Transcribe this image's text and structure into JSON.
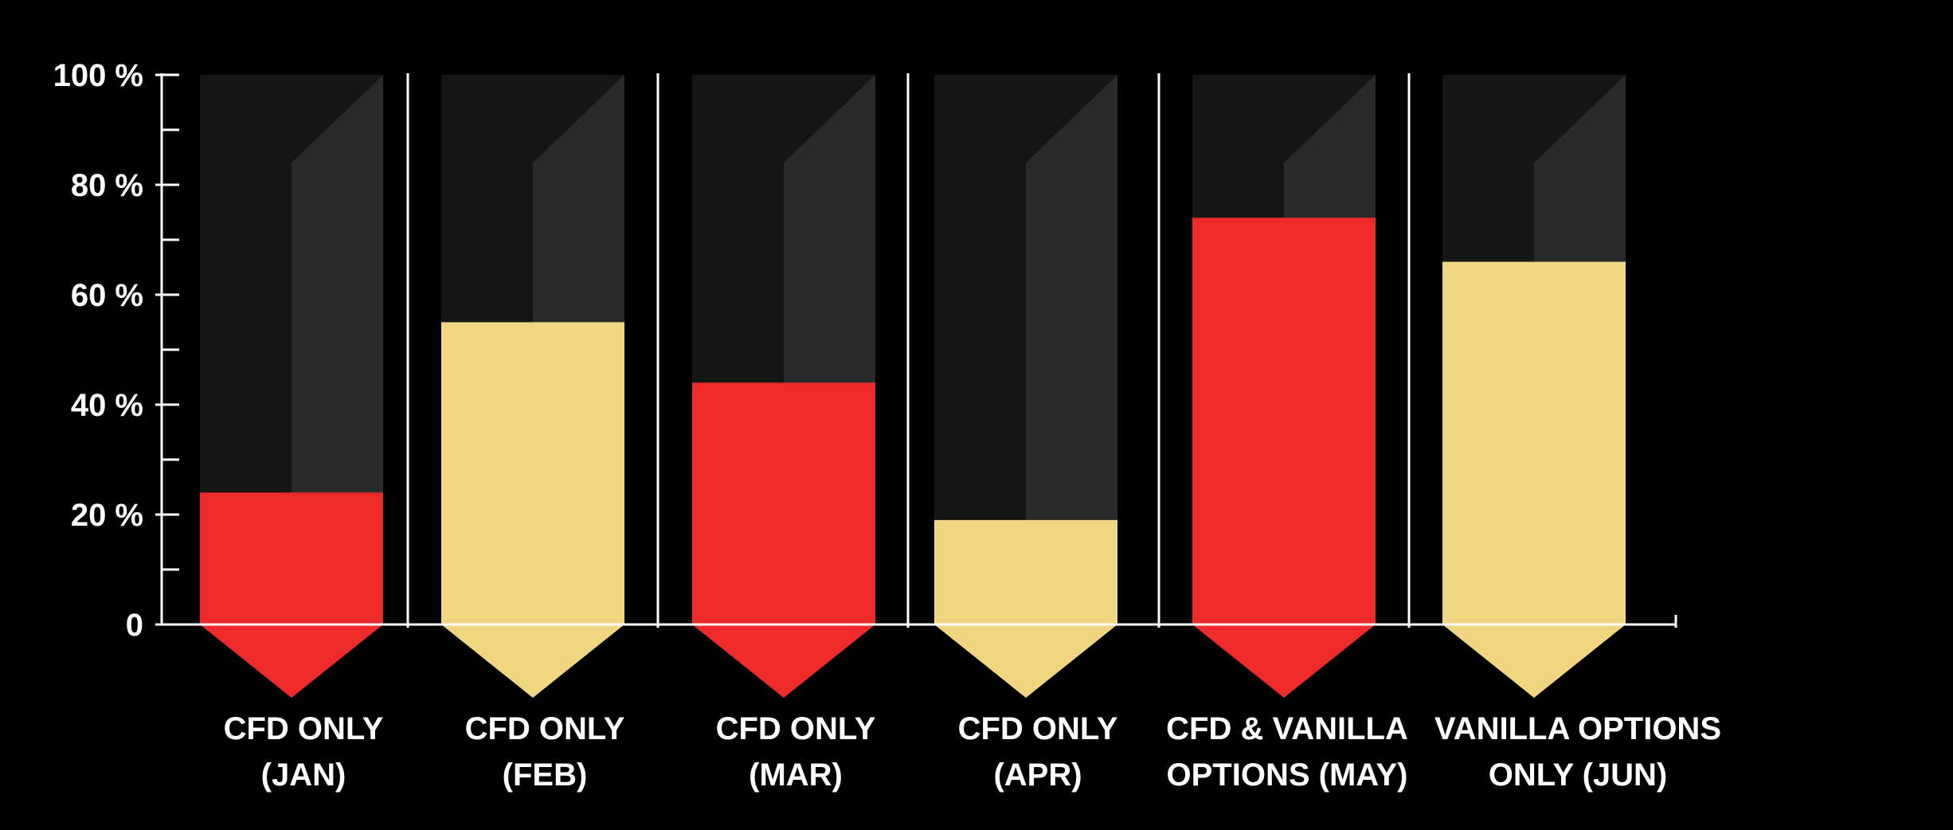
{
  "chart_data": {
    "type": "bar",
    "ylim": [
      0,
      100
    ],
    "y_ticks": [
      {
        "value": 0,
        "label": "0"
      },
      {
        "value": 20,
        "label": "20 %"
      },
      {
        "value": 40,
        "label": "40 %"
      },
      {
        "value": 60,
        "label": "60 %"
      },
      {
        "value": 80,
        "label": "80 %"
      },
      {
        "value": 100,
        "label": "100 %"
      }
    ],
    "y_minor_ticks": [
      10,
      30,
      50,
      70,
      90
    ],
    "categories": [
      [
        "CFD ONLY",
        "(JAN)"
      ],
      [
        "CFD ONLY",
        "(FEB)"
      ],
      [
        "CFD ONLY",
        "(MAR)"
      ],
      [
        "CFD ONLY",
        "(APR)"
      ],
      [
        "CFD & VANILLA",
        "OPTIONS (MAY)"
      ],
      [
        "VANILLA OPTIONS",
        "ONLY (JUN)"
      ]
    ],
    "values": [
      24,
      55,
      44,
      19,
      74,
      66
    ],
    "bar_colors": [
      "#ee2a2a",
      "#f0d680",
      "#ee2a2a",
      "#f0d680",
      "#ee2a2a",
      "#f0d680"
    ],
    "colors": {
      "background": "#000000",
      "track_left": "#151515",
      "track_right": "#2a2a2a",
      "axis": "#ffffff",
      "text": "#ffffff"
    },
    "title": "",
    "xlabel": "",
    "ylabel": "",
    "grid": false,
    "legend": "none"
  }
}
